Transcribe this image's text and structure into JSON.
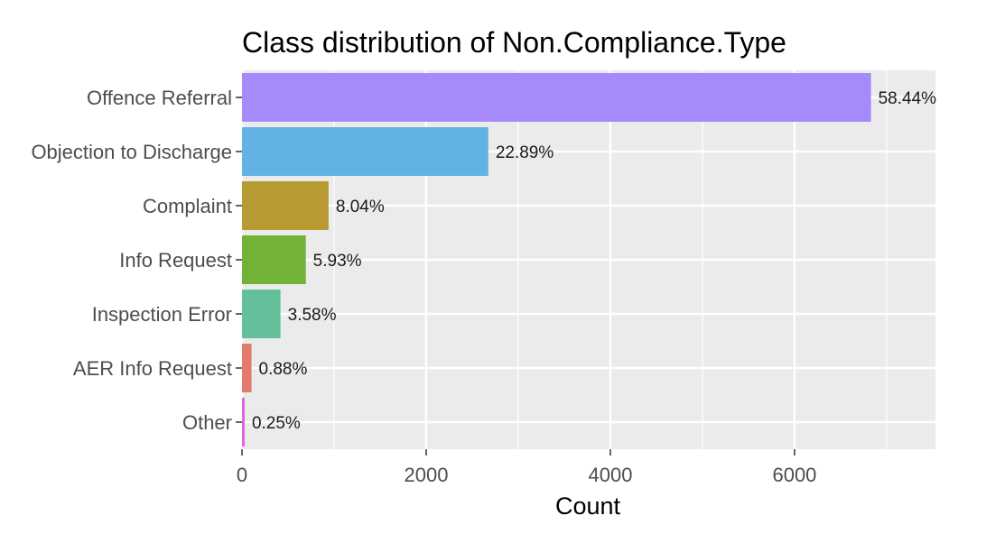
{
  "chart_data": {
    "type": "bar",
    "orientation": "horizontal",
    "title": "Class distribution of Non.Compliance.Type",
    "xlabel": "Count",
    "ylabel": "",
    "xlim": [
      0,
      7530
    ],
    "xticks": [
      0,
      2000,
      4000,
      6000
    ],
    "grid": true,
    "legend": "none",
    "categories": [
      "Offence Referral",
      "Objection to Discharge",
      "Complaint",
      "Info Request",
      "Inspection Error",
      "AER Info Request",
      "Other"
    ],
    "values": [
      6830,
      2675,
      940,
      693,
      418,
      103,
      29
    ],
    "labels": [
      "58.44%",
      "22.89%",
      "8.04%",
      "5.93%",
      "3.58%",
      "0.88%",
      "0.25%"
    ],
    "colors": [
      "#a58afc",
      "#62b2e3",
      "#b79a32",
      "#72b337",
      "#63c09a",
      "#e27a6d",
      "#de64e0"
    ],
    "panel_color": "#ebebeb",
    "grid_color": "#ffffff"
  }
}
